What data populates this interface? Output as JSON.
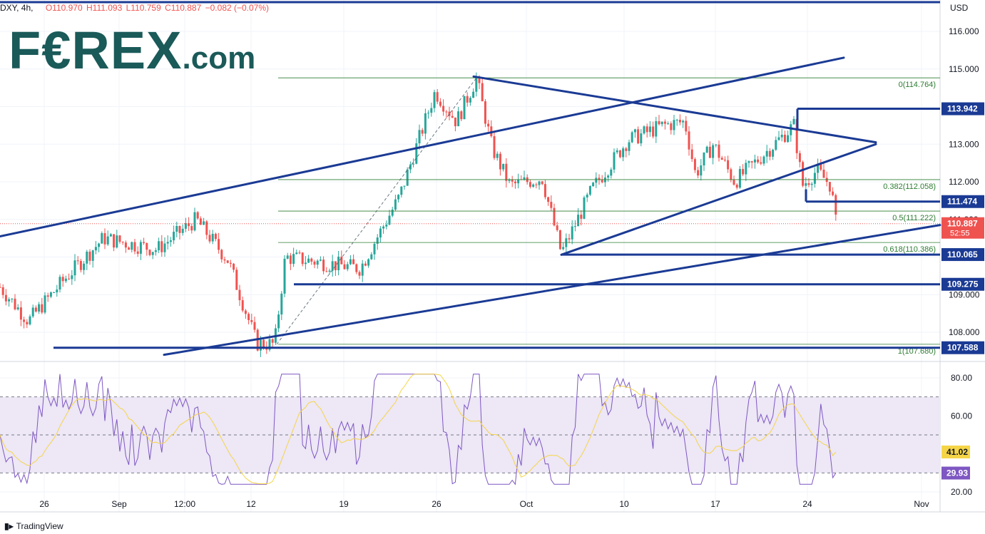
{
  "header": {
    "symbol": "DXY, 4h,",
    "open": "O110.970",
    "high": "H111.093",
    "low": "L110.759",
    "close": "C110.887",
    "change": "−0.082 (−0.07%)"
  },
  "logo": {
    "main": "F€REX",
    "suffix": ".com"
  },
  "footer": {
    "brand": "TradingView"
  },
  "colors": {
    "up": "#26a69a",
    "down": "#ef5350",
    "trendline": "#1a3a94",
    "fib": "#2e7d32",
    "rsi": "#7e57c2",
    "rsi_ma": "#f5d547",
    "rsi_band": "#ede7f6"
  },
  "chart_data": [
    {
      "type": "candlestick",
      "currency_label": "USD",
      "x_ticks": [
        "26",
        "Sep",
        "12:00",
        "12",
        "19",
        "26",
        "Oct",
        "10",
        "17",
        "24",
        "Nov"
      ],
      "y_ticks": [
        "116.000",
        "115.000",
        "113.000",
        "112.000",
        "111.000",
        "109.000",
        "108.000"
      ],
      "ylim": [
        107.3,
        116.5
      ],
      "price_series_hint": "4-hour DXY candles, late Aug to late Oct",
      "key_points": [
        {
          "t": 0,
          "p": 109.2
        },
        {
          "t": 40,
          "p": 108.3
        },
        {
          "t": 90,
          "p": 109.4
        },
        {
          "t": 145,
          "p": 110.5
        },
        {
          "t": 220,
          "p": 110.2
        },
        {
          "t": 275,
          "p": 111.0
        },
        {
          "t": 320,
          "p": 109.9
        },
        {
          "t": 360,
          "p": 107.7
        },
        {
          "t": 385,
          "p": 107.68
        },
        {
          "t": 400,
          "p": 110.0
        },
        {
          "t": 505,
          "p": 109.7
        },
        {
          "t": 560,
          "p": 111.6
        },
        {
          "t": 610,
          "p": 114.4
        },
        {
          "t": 640,
          "p": 113.6
        },
        {
          "t": 668,
          "p": 114.76
        },
        {
          "t": 690,
          "p": 112.9
        },
        {
          "t": 715,
          "p": 111.9
        },
        {
          "t": 760,
          "p": 112.1
        },
        {
          "t": 787,
          "p": 110.1
        },
        {
          "t": 830,
          "p": 111.8
        },
        {
          "t": 880,
          "p": 113.1
        },
        {
          "t": 930,
          "p": 113.5
        },
        {
          "t": 960,
          "p": 113.6
        },
        {
          "t": 975,
          "p": 112.2
        },
        {
          "t": 1000,
          "p": 113.0
        },
        {
          "t": 1030,
          "p": 112.0
        },
        {
          "t": 1080,
          "p": 112.9
        },
        {
          "t": 1113,
          "p": 113.5
        },
        {
          "t": 1125,
          "p": 111.9
        },
        {
          "t": 1145,
          "p": 112.3
        },
        {
          "t": 1165,
          "p": 111.9
        },
        {
          "t": 1172,
          "p": 110.89
        }
      ],
      "fibonacci": [
        {
          "label": "0(114.764)",
          "price": 114.764
        },
        {
          "label": "0.382(112.058)",
          "price": 112.058
        },
        {
          "label": "0.5(111.222)",
          "price": 111.222
        },
        {
          "label": "0.618(110.386)",
          "price": 110.386
        },
        {
          "label": "1(107.680)",
          "price": 107.68
        }
      ],
      "horizontal_levels": [
        {
          "label": "113.942",
          "price": 113.942
        },
        {
          "label": "111.474",
          "price": 111.474
        },
        {
          "label": "110.065",
          "price": 110.065
        },
        {
          "label": "109.275",
          "price": 109.275
        },
        {
          "label": "107.588",
          "price": 107.588
        }
      ],
      "current_price": {
        "label": "110.887",
        "countdown": "52:55",
        "price": 110.887
      }
    },
    {
      "type": "line",
      "name": "RSI",
      "y_ticks": [
        "80.00",
        "60.00",
        "20.00"
      ],
      "ylim": [
        17,
        86
      ],
      "bands": [
        70,
        50,
        30
      ],
      "current_rsi": {
        "label": "29.93",
        "value": 29.93
      },
      "current_ma": {
        "label": "41.02",
        "value": 41.02
      }
    }
  ]
}
